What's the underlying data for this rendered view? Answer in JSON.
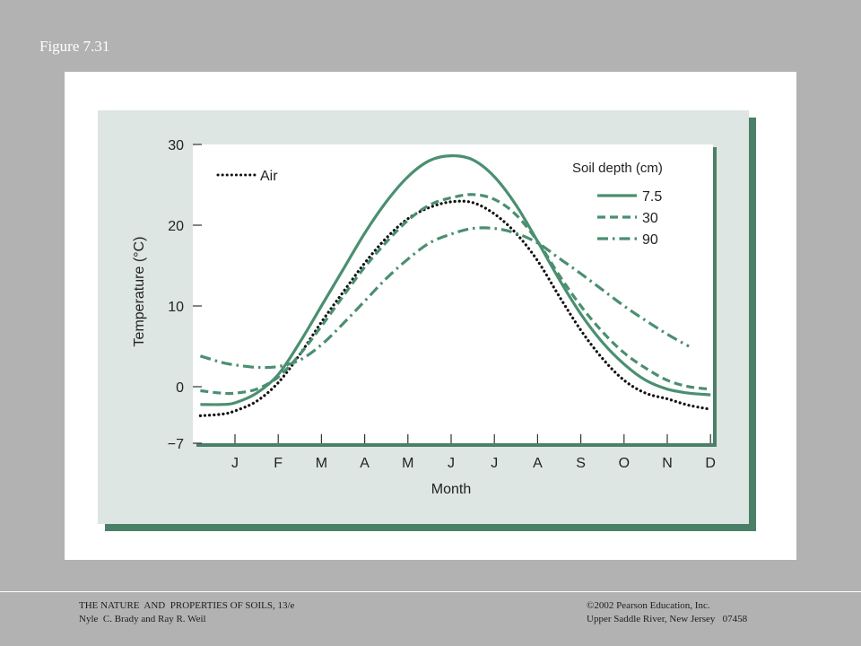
{
  "figure_label": "Figure 7.31",
  "footer": {
    "left_line1": "THE NATURE  AND  PROPERTIES OF SOILS, 13/e",
    "left_line2": "Nyle  C. Brady and Ray R. Weil",
    "right_line1": "©2002 Pearson Education, Inc.",
    "right_line2": "Upper Saddle River, New Jersey   07458"
  },
  "colors": {
    "background": "#b2b2b2",
    "panel": "#dde6e3",
    "shadow": "#4a8068",
    "soil_series": "#4a8f70",
    "air_series": "#111111"
  },
  "chart_data": {
    "type": "line",
    "xlabel": "Month",
    "ylabel": "Temperature (°C)",
    "ylim": [
      -7,
      30
    ],
    "yticks": [
      30,
      20,
      10,
      0,
      -7
    ],
    "categories": [
      "J",
      "F",
      "M",
      "A",
      "M",
      "J",
      "J",
      "A",
      "S",
      "O",
      "N",
      "D"
    ],
    "legend_title": "Soil depth (cm)",
    "legend_placement": "top-right",
    "grid": false,
    "series": [
      {
        "name": "Air",
        "style": "dotted",
        "x": [
          -0.8,
          -0.3,
          0,
          0.5,
          1,
          1.5,
          2,
          2.5,
          3,
          3.5,
          4,
          4.5,
          5,
          5.5,
          6,
          6.5,
          7,
          7.5,
          8,
          8.5,
          9,
          9.5,
          10,
          10.5,
          11
        ],
        "y": [
          -3.6,
          -3.4,
          -3.0,
          -1.8,
          0.5,
          4.0,
          8.0,
          11.7,
          15.3,
          18.4,
          20.8,
          22.2,
          22.9,
          22.8,
          21.4,
          19.0,
          15.6,
          11.2,
          7.0,
          3.5,
          0.8,
          -0.8,
          -1.5,
          -2.3,
          -2.8
        ]
      },
      {
        "name": "7.5",
        "style": "solid",
        "x": [
          -0.8,
          -0.3,
          0,
          0.5,
          1,
          1.5,
          2,
          2.5,
          3,
          3.5,
          4,
          4.5,
          5,
          5.5,
          6,
          6.5,
          7,
          7.5,
          8,
          8.5,
          9,
          9.5,
          10,
          10.5,
          11
        ],
        "y": [
          -2.2,
          -2.2,
          -2.0,
          -0.8,
          1.5,
          5.5,
          10.0,
          14.5,
          19.0,
          22.9,
          26.0,
          28.0,
          28.6,
          28.1,
          26.0,
          22.5,
          18.0,
          13.3,
          9.0,
          5.5,
          2.8,
          0.8,
          -0.3,
          -0.8,
          -1.0
        ]
      },
      {
        "name": "30",
        "style": "dashed",
        "x": [
          -0.8,
          -0.3,
          0,
          0.5,
          1,
          1.5,
          2,
          2.5,
          3,
          3.5,
          4,
          4.5,
          5,
          5.5,
          6,
          6.5,
          7,
          7.5,
          8,
          8.5,
          9,
          9.5,
          10,
          10.5,
          11
        ],
        "y": [
          -0.5,
          -0.8,
          -0.8,
          -0.3,
          1.2,
          4.0,
          7.5,
          11.2,
          14.8,
          17.9,
          20.6,
          22.5,
          23.4,
          23.8,
          23.2,
          21.3,
          18.0,
          13.8,
          10.0,
          6.8,
          4.2,
          2.3,
          0.8,
          0.0,
          -0.3
        ]
      },
      {
        "name": "90",
        "style": "dashdot",
        "x": [
          -0.8,
          -0.3,
          0,
          0.5,
          1,
          1.5,
          2,
          2.5,
          3,
          3.5,
          4,
          4.5,
          5,
          5.5,
          6,
          6.5,
          7,
          7.5,
          8,
          8.5,
          9,
          9.5,
          10,
          10.5
        ],
        "y": [
          3.8,
          3.0,
          2.7,
          2.4,
          2.5,
          3.3,
          5.2,
          7.8,
          10.6,
          13.4,
          15.8,
          17.8,
          18.9,
          19.6,
          19.6,
          19.0,
          17.8,
          15.9,
          14.0,
          12.0,
          10.0,
          8.2,
          6.5,
          5.0
        ]
      }
    ]
  }
}
